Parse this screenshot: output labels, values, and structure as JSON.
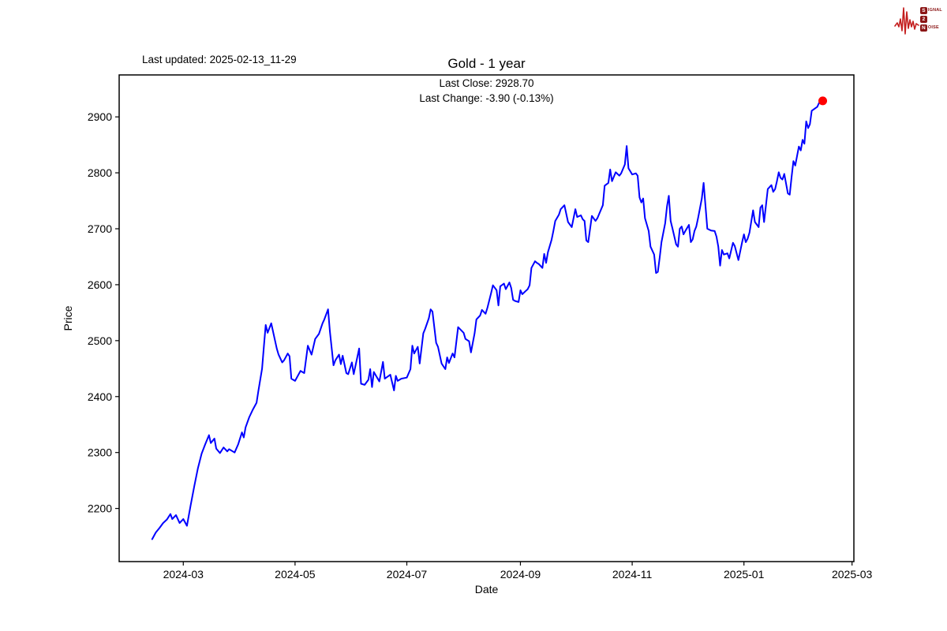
{
  "page": {
    "last_updated": "Last updated: 2025-02-13_11-29",
    "title": "Gold - 1 year",
    "subtitle_line1": "Last Close: 2928.70",
    "subtitle_line2": "Last Change: -3.90 (-0.13%)"
  },
  "logo": {
    "name": "signal-2-noise",
    "color": "#c41e1e",
    "badge_color": "#8b1616",
    "rows": [
      {
        "initial": "S",
        "rest": "IGNAL"
      },
      {
        "initial": "2",
        "rest": ""
      },
      {
        "initial": "N",
        "rest": "OISE"
      }
    ]
  },
  "chart_data": {
    "type": "line",
    "title": "Gold - 1 year",
    "xlabel": "Date",
    "ylabel": "Price",
    "last_close": 2928.7,
    "last_change": "-3.90 (-0.13%)",
    "line_color": "#0000ff",
    "last_point_color": "#ff0000",
    "grid": false,
    "ylim": [
      2105,
      2975
    ],
    "xlim": [
      "2024-01-26",
      "2025-03-02"
    ],
    "yticks": [
      2200,
      2300,
      2400,
      2500,
      2600,
      2700,
      2800,
      2900
    ],
    "xticks": [
      {
        "date": "2024-03-01",
        "label": "2024-03"
      },
      {
        "date": "2024-05-01",
        "label": "2024-05"
      },
      {
        "date": "2024-07-01",
        "label": "2024-07"
      },
      {
        "date": "2024-09-01",
        "label": "2024-09"
      },
      {
        "date": "2024-11-01",
        "label": "2024-11"
      },
      {
        "date": "2025-01-01",
        "label": "2025-01"
      },
      {
        "date": "2025-03-01",
        "label": "2025-03"
      }
    ],
    "series_name": "Gold",
    "points": [
      [
        "2024-02-13",
        2145
      ],
      [
        "2024-02-15",
        2157
      ],
      [
        "2024-02-17",
        2165
      ],
      [
        "2024-02-19",
        2174
      ],
      [
        "2024-02-21",
        2180
      ],
      [
        "2024-02-23",
        2190
      ],
      [
        "2024-02-24",
        2181
      ],
      [
        "2024-02-26",
        2188
      ],
      [
        "2024-02-28",
        2174
      ],
      [
        "2024-03-01",
        2181
      ],
      [
        "2024-03-03",
        2169
      ],
      [
        "2024-03-05",
        2205
      ],
      [
        "2024-03-07",
        2240
      ],
      [
        "2024-03-09",
        2272
      ],
      [
        "2024-03-11",
        2298
      ],
      [
        "2024-03-13",
        2315
      ],
      [
        "2024-03-15",
        2331
      ],
      [
        "2024-03-16",
        2317
      ],
      [
        "2024-03-18",
        2325
      ],
      [
        "2024-03-19",
        2307
      ],
      [
        "2024-03-21",
        2299
      ],
      [
        "2024-03-23",
        2309
      ],
      [
        "2024-03-25",
        2302
      ],
      [
        "2024-03-26",
        2306
      ],
      [
        "2024-03-29",
        2300
      ],
      [
        "2024-03-31",
        2315
      ],
      [
        "2024-04-02",
        2336
      ],
      [
        "2024-04-03",
        2327
      ],
      [
        "2024-04-04",
        2345
      ],
      [
        "2024-04-06",
        2363
      ],
      [
        "2024-04-08",
        2377
      ],
      [
        "2024-04-10",
        2389
      ],
      [
        "2024-04-11",
        2410
      ],
      [
        "2024-04-13",
        2450
      ],
      [
        "2024-04-14",
        2490
      ],
      [
        "2024-04-15",
        2528
      ],
      [
        "2024-04-16",
        2514
      ],
      [
        "2024-04-18",
        2531
      ],
      [
        "2024-04-21",
        2486
      ],
      [
        "2024-04-22",
        2475
      ],
      [
        "2024-04-24",
        2461
      ],
      [
        "2024-04-25",
        2465
      ],
      [
        "2024-04-27",
        2477
      ],
      [
        "2024-04-28",
        2472
      ],
      [
        "2024-04-29",
        2432
      ],
      [
        "2024-05-01",
        2428
      ],
      [
        "2024-05-04",
        2446
      ],
      [
        "2024-05-06",
        2442
      ],
      [
        "2024-05-08",
        2491
      ],
      [
        "2024-05-10",
        2475
      ],
      [
        "2024-05-12",
        2503
      ],
      [
        "2024-05-14",
        2512
      ],
      [
        "2024-05-16",
        2531
      ],
      [
        "2024-05-17",
        2538
      ],
      [
        "2024-05-19",
        2556
      ],
      [
        "2024-05-20",
        2517
      ],
      [
        "2024-05-22",
        2456
      ],
      [
        "2024-05-23",
        2465
      ],
      [
        "2024-05-25",
        2475
      ],
      [
        "2024-05-26",
        2458
      ],
      [
        "2024-05-27",
        2473
      ],
      [
        "2024-05-29",
        2442
      ],
      [
        "2024-05-30",
        2440
      ],
      [
        "2024-06-01",
        2461
      ],
      [
        "2024-06-02",
        2440
      ],
      [
        "2024-06-05",
        2486
      ],
      [
        "2024-06-06",
        2423
      ],
      [
        "2024-06-08",
        2421
      ],
      [
        "2024-06-10",
        2430
      ],
      [
        "2024-06-11",
        2449
      ],
      [
        "2024-06-12",
        2417
      ],
      [
        "2024-06-13",
        2444
      ],
      [
        "2024-06-16",
        2427
      ],
      [
        "2024-06-18",
        2462
      ],
      [
        "2024-06-19",
        2432
      ],
      [
        "2024-06-22",
        2439
      ],
      [
        "2024-06-24",
        2411
      ],
      [
        "2024-06-25",
        2437
      ],
      [
        "2024-06-26",
        2428
      ],
      [
        "2024-06-28",
        2432
      ],
      [
        "2024-07-01",
        2434
      ],
      [
        "2024-07-03",
        2449
      ],
      [
        "2024-07-04",
        2491
      ],
      [
        "2024-07-05",
        2477
      ],
      [
        "2024-07-07",
        2489
      ],
      [
        "2024-07-08",
        2459
      ],
      [
        "2024-07-10",
        2513
      ],
      [
        "2024-07-11",
        2521
      ],
      [
        "2024-07-13",
        2540
      ],
      [
        "2024-07-14",
        2556
      ],
      [
        "2024-07-15",
        2552
      ],
      [
        "2024-07-17",
        2496
      ],
      [
        "2024-07-18",
        2489
      ],
      [
        "2024-07-20",
        2459
      ],
      [
        "2024-07-22",
        2449
      ],
      [
        "2024-07-23",
        2470
      ],
      [
        "2024-07-24",
        2460
      ],
      [
        "2024-07-26",
        2477
      ],
      [
        "2024-07-27",
        2470
      ],
      [
        "2024-07-29",
        2524
      ],
      [
        "2024-08-01",
        2514
      ],
      [
        "2024-08-02",
        2503
      ],
      [
        "2024-08-04",
        2499
      ],
      [
        "2024-08-05",
        2479
      ],
      [
        "2024-08-07",
        2513
      ],
      [
        "2024-08-08",
        2538
      ],
      [
        "2024-08-10",
        2545
      ],
      [
        "2024-08-11",
        2555
      ],
      [
        "2024-08-13",
        2548
      ],
      [
        "2024-08-14",
        2559
      ],
      [
        "2024-08-16",
        2585
      ],
      [
        "2024-08-17",
        2599
      ],
      [
        "2024-08-19",
        2590
      ],
      [
        "2024-08-20",
        2563
      ],
      [
        "2024-08-21",
        2597
      ],
      [
        "2024-08-23",
        2602
      ],
      [
        "2024-08-24",
        2592
      ],
      [
        "2024-08-26",
        2604
      ],
      [
        "2024-08-27",
        2594
      ],
      [
        "2024-08-28",
        2573
      ],
      [
        "2024-08-29",
        2571
      ],
      [
        "2024-08-31",
        2569
      ],
      [
        "2024-09-01",
        2590
      ],
      [
        "2024-09-02",
        2583
      ],
      [
        "2024-09-04",
        2589
      ],
      [
        "2024-09-05",
        2592
      ],
      [
        "2024-09-06",
        2599
      ],
      [
        "2024-09-07",
        2630
      ],
      [
        "2024-09-09",
        2642
      ],
      [
        "2024-09-10",
        2639
      ],
      [
        "2024-09-11",
        2637
      ],
      [
        "2024-09-13",
        2630
      ],
      [
        "2024-09-14",
        2655
      ],
      [
        "2024-09-15",
        2639
      ],
      [
        "2024-09-16",
        2658
      ],
      [
        "2024-09-18",
        2680
      ],
      [
        "2024-09-19",
        2696
      ],
      [
        "2024-09-20",
        2714
      ],
      [
        "2024-09-22",
        2725
      ],
      [
        "2024-09-23",
        2735
      ],
      [
        "2024-09-25",
        2742
      ],
      [
        "2024-09-27",
        2712
      ],
      [
        "2024-09-29",
        2703
      ],
      [
        "2024-10-01",
        2735
      ],
      [
        "2024-10-02",
        2721
      ],
      [
        "2024-10-04",
        2724
      ],
      [
        "2024-10-05",
        2717
      ],
      [
        "2024-10-06",
        2714
      ],
      [
        "2024-10-07",
        2679
      ],
      [
        "2024-10-08",
        2676
      ],
      [
        "2024-10-10",
        2723
      ],
      [
        "2024-10-12",
        2714
      ],
      [
        "2024-10-13",
        2719
      ],
      [
        "2024-10-16",
        2742
      ],
      [
        "2024-10-17",
        2777
      ],
      [
        "2024-10-19",
        2782
      ],
      [
        "2024-10-20",
        2806
      ],
      [
        "2024-10-21",
        2785
      ],
      [
        "2024-10-23",
        2801
      ],
      [
        "2024-10-25",
        2795
      ],
      [
        "2024-10-26",
        2799
      ],
      [
        "2024-10-28",
        2815
      ],
      [
        "2024-10-29",
        2848
      ],
      [
        "2024-10-30",
        2808
      ],
      [
        "2024-11-01",
        2797
      ],
      [
        "2024-11-03",
        2799
      ],
      [
        "2024-11-04",
        2795
      ],
      [
        "2024-11-05",
        2756
      ],
      [
        "2024-11-06",
        2747
      ],
      [
        "2024-11-07",
        2754
      ],
      [
        "2024-11-08",
        2719
      ],
      [
        "2024-11-10",
        2696
      ],
      [
        "2024-11-11",
        2668
      ],
      [
        "2024-11-13",
        2654
      ],
      [
        "2024-11-14",
        2621
      ],
      [
        "2024-11-15",
        2623
      ],
      [
        "2024-11-16",
        2648
      ],
      [
        "2024-11-17",
        2676
      ],
      [
        "2024-11-19",
        2710
      ],
      [
        "2024-11-20",
        2740
      ],
      [
        "2024-11-21",
        2759
      ],
      [
        "2024-11-22",
        2714
      ],
      [
        "2024-11-23",
        2700
      ],
      [
        "2024-11-25",
        2672
      ],
      [
        "2024-11-26",
        2668
      ],
      [
        "2024-11-27",
        2700
      ],
      [
        "2024-11-28",
        2704
      ],
      [
        "2024-11-29",
        2690
      ],
      [
        "2024-11-30",
        2696
      ],
      [
        "2024-12-02",
        2707
      ],
      [
        "2024-12-03",
        2676
      ],
      [
        "2024-12-04",
        2681
      ],
      [
        "2024-12-05",
        2696
      ],
      [
        "2024-12-06",
        2704
      ],
      [
        "2024-12-07",
        2720
      ],
      [
        "2024-12-09",
        2754
      ],
      [
        "2024-12-10",
        2782
      ],
      [
        "2024-12-12",
        2700
      ],
      [
        "2024-12-14",
        2697
      ],
      [
        "2024-12-16",
        2696
      ],
      [
        "2024-12-17",
        2686
      ],
      [
        "2024-12-18",
        2668
      ],
      [
        "2024-12-19",
        2634
      ],
      [
        "2024-12-20",
        2662
      ],
      [
        "2024-12-21",
        2654
      ],
      [
        "2024-12-23",
        2656
      ],
      [
        "2024-12-24",
        2647
      ],
      [
        "2024-12-26",
        2675
      ],
      [
        "2024-12-27",
        2669
      ],
      [
        "2024-12-29",
        2644
      ],
      [
        "2024-12-31",
        2676
      ],
      [
        "2025-01-01",
        2690
      ],
      [
        "2025-01-02",
        2676
      ],
      [
        "2025-01-03",
        2682
      ],
      [
        "2025-01-04",
        2693
      ],
      [
        "2025-01-06",
        2733
      ],
      [
        "2025-01-07",
        2712
      ],
      [
        "2025-01-09",
        2703
      ],
      [
        "2025-01-10",
        2738
      ],
      [
        "2025-01-11",
        2742
      ],
      [
        "2025-01-12",
        2712
      ],
      [
        "2025-01-14",
        2771
      ],
      [
        "2025-01-16",
        2778
      ],
      [
        "2025-01-17",
        2766
      ],
      [
        "2025-01-18",
        2771
      ],
      [
        "2025-01-19",
        2785
      ],
      [
        "2025-01-20",
        2801
      ],
      [
        "2025-01-21",
        2791
      ],
      [
        "2025-01-22",
        2788
      ],
      [
        "2025-01-23",
        2798
      ],
      [
        "2025-01-25",
        2763
      ],
      [
        "2025-01-26",
        2761
      ],
      [
        "2025-01-27",
        2793
      ],
      [
        "2025-01-28",
        2821
      ],
      [
        "2025-01-29",
        2813
      ],
      [
        "2025-01-30",
        2830
      ],
      [
        "2025-01-31",
        2847
      ],
      [
        "2025-02-01",
        2840
      ],
      [
        "2025-02-02",
        2859
      ],
      [
        "2025-02-03",
        2852
      ],
      [
        "2025-02-04",
        2892
      ],
      [
        "2025-02-05",
        2880
      ],
      [
        "2025-02-06",
        2887
      ],
      [
        "2025-02-07",
        2911
      ],
      [
        "2025-02-10",
        2918
      ],
      [
        "2025-02-12",
        2932
      ],
      [
        "2025-02-13",
        2928.7
      ]
    ]
  }
}
